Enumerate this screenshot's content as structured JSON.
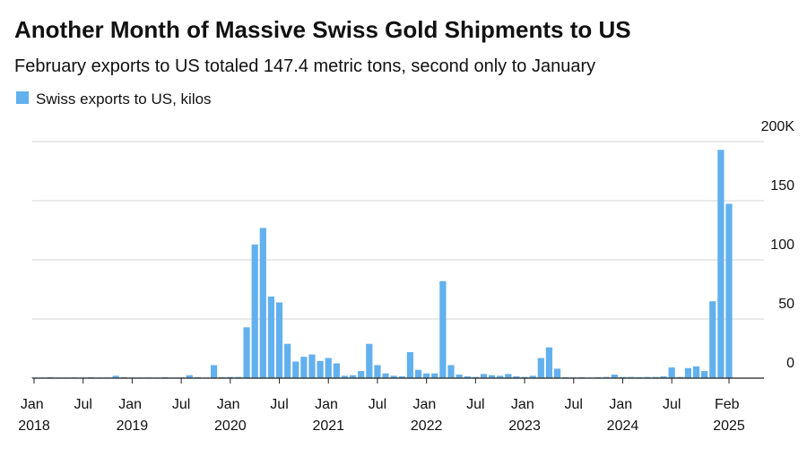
{
  "chart_data": {
    "type": "bar",
    "title": "Another Month of Massive Swiss Gold Shipments to US",
    "subtitle": "February exports to US totaled 147.4 metric tons, second only to January",
    "categories": [
      "Jan 2018",
      null,
      null,
      null,
      null,
      null,
      "Jul",
      null,
      null,
      null,
      null,
      null,
      "Jan 2019",
      null,
      null,
      null,
      null,
      null,
      "Jul",
      null,
      null,
      null,
      null,
      null,
      "Jan 2020",
      null,
      null,
      null,
      null,
      null,
      "Jul",
      null,
      null,
      null,
      null,
      null,
      "Jan 2021",
      null,
      null,
      null,
      null,
      null,
      "Jul",
      null,
      null,
      null,
      null,
      null,
      "Jan 2022",
      null,
      null,
      null,
      null,
      null,
      "Jul",
      null,
      null,
      null,
      null,
      null,
      "Jan 2023",
      null,
      null,
      null,
      null,
      null,
      "Jul",
      null,
      null,
      null,
      null,
      null,
      "Jan 2024",
      null,
      null,
      null,
      null,
      null,
      "Jul",
      null,
      null,
      null,
      null,
      null,
      null,
      "Feb 2025"
    ],
    "series": [
      {
        "name": "Swiss exports to US, kilos",
        "color": "#62b0ee",
        "values": [
          500,
          500,
          800,
          500,
          500,
          600,
          500,
          800,
          500,
          600,
          2000,
          800,
          500,
          500,
          600,
          500,
          800,
          500,
          600,
          2500,
          800,
          500,
          11000,
          800,
          1000,
          1000,
          43000,
          113000,
          127000,
          69000,
          64000,
          29000,
          14000,
          18000,
          20000,
          14500,
          17000,
          12500,
          2000,
          2500,
          6000,
          29000,
          11000,
          4000,
          2000,
          1500,
          22000,
          7000,
          4000,
          4000,
          82000,
          11000,
          3000,
          1500,
          1000,
          3500,
          2500,
          2000,
          3500,
          1500,
          1000,
          2000,
          17000,
          26000,
          8000,
          800,
          600,
          800,
          500,
          800,
          1000,
          3000,
          1000,
          1000,
          800,
          1000,
          1000,
          1500,
          9000,
          1000,
          8500,
          10000,
          6000,
          65000,
          193000,
          147400
        ]
      }
    ],
    "ylim": [
      0,
      200000
    ],
    "yticks": [
      0,
      {
        "value": 50000,
        "label": "50"
      },
      {
        "value": 100000,
        "label": "100"
      },
      {
        "value": 150000,
        "label": "150"
      },
      {
        "value": 200000,
        "label": "200K"
      }
    ],
    "grid": true
  }
}
